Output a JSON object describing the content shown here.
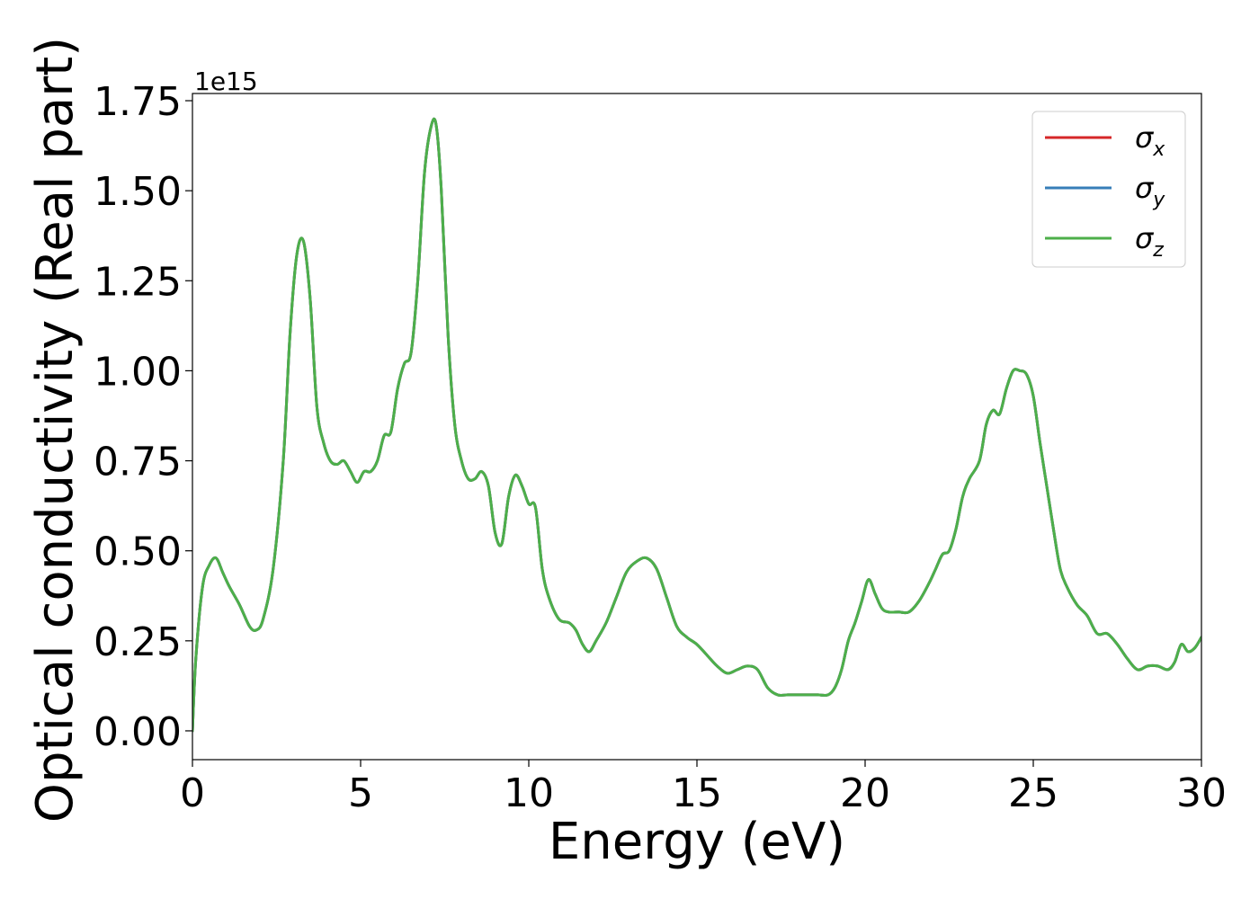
{
  "chart_data": {
    "type": "line",
    "title": "",
    "xlabel": "Energy (eV)",
    "ylabel": "Optical conductivity (Real part)",
    "y_offset_text": "1e15",
    "y_scale": 1000000000000000.0,
    "xlim": [
      0,
      30
    ],
    "ylim": [
      -0.08,
      1.77
    ],
    "xticks": [
      0,
      5,
      10,
      15,
      20,
      25,
      30
    ],
    "xtick_labels": [
      "0",
      "5",
      "10",
      "15",
      "20",
      "25",
      "30"
    ],
    "yticks": [
      0.0,
      0.25,
      0.5,
      0.75,
      1.0,
      1.25,
      1.5,
      1.75
    ],
    "ytick_labels": [
      "0.00",
      "0.25",
      "0.50",
      "0.75",
      "1.00",
      "1.25",
      "1.50",
      "1.75"
    ],
    "grid": false,
    "legend_position": "top-right",
    "legend": [
      {
        "symbol": "σ",
        "sub": "x",
        "color": "#d62728"
      },
      {
        "symbol": "σ",
        "sub": "y",
        "color": "#377eb8"
      },
      {
        "symbol": "σ",
        "sub": "z",
        "color": "#4daf4a"
      }
    ],
    "x": [
      0,
      0.1,
      0.3,
      0.5,
      0.7,
      0.9,
      1.1,
      1.4,
      1.7,
      1.9,
      2.1,
      2.4,
      2.7,
      2.9,
      3.1,
      3.3,
      3.5,
      3.7,
      3.9,
      4.1,
      4.3,
      4.5,
      4.7,
      4.9,
      5.1,
      5.3,
      5.5,
      5.7,
      5.9,
      6.1,
      6.3,
      6.5,
      6.7,
      6.9,
      7.1,
      7.25,
      7.4,
      7.6,
      7.8,
      8.0,
      8.2,
      8.4,
      8.6,
      8.8,
      9.0,
      9.2,
      9.4,
      9.6,
      9.8,
      10.0,
      10.2,
      10.4,
      10.6,
      10.9,
      11.2,
      11.4,
      11.6,
      11.8,
      12.0,
      12.3,
      12.6,
      12.9,
      13.2,
      13.5,
      13.8,
      14.1,
      14.4,
      14.7,
      15.0,
      15.3,
      15.6,
      15.9,
      16.2,
      16.5,
      16.8,
      17.1,
      17.4,
      17.7,
      18.0,
      18.3,
      18.6,
      18.9,
      19.1,
      19.3,
      19.5,
      19.7,
      19.9,
      20.1,
      20.3,
      20.5,
      20.7,
      21.0,
      21.3,
      21.6,
      21.9,
      22.1,
      22.3,
      22.5,
      22.7,
      22.9,
      23.1,
      23.4,
      23.6,
      23.8,
      24.0,
      24.2,
      24.4,
      24.6,
      24.8,
      25.0,
      25.2,
      25.4,
      25.6,
      25.8,
      26.0,
      26.3,
      26.6,
      26.9,
      27.2,
      27.5,
      27.8,
      28.1,
      28.4,
      28.7,
      29.0,
      29.2,
      29.4,
      29.6,
      29.8,
      30.0
    ],
    "series": [
      {
        "color": "#d62728",
        "values": [
          0.0,
          0.2,
          0.4,
          0.46,
          0.48,
          0.44,
          0.4,
          0.35,
          0.29,
          0.28,
          0.31,
          0.45,
          0.75,
          1.1,
          1.32,
          1.36,
          1.2,
          0.9,
          0.8,
          0.75,
          0.74,
          0.75,
          0.72,
          0.69,
          0.72,
          0.72,
          0.75,
          0.82,
          0.83,
          0.95,
          1.02,
          1.05,
          1.25,
          1.55,
          1.68,
          1.68,
          1.5,
          1.1,
          0.85,
          0.75,
          0.7,
          0.7,
          0.72,
          0.68,
          0.55,
          0.52,
          0.65,
          0.71,
          0.68,
          0.63,
          0.62,
          0.45,
          0.37,
          0.31,
          0.3,
          0.28,
          0.24,
          0.22,
          0.25,
          0.3,
          0.37,
          0.44,
          0.47,
          0.48,
          0.45,
          0.37,
          0.29,
          0.26,
          0.24,
          0.21,
          0.18,
          0.16,
          0.17,
          0.18,
          0.17,
          0.12,
          0.1,
          0.1,
          0.1,
          0.1,
          0.1,
          0.1,
          0.12,
          0.17,
          0.25,
          0.3,
          0.36,
          0.42,
          0.38,
          0.34,
          0.33,
          0.33,
          0.33,
          0.36,
          0.41,
          0.45,
          0.49,
          0.5,
          0.56,
          0.65,
          0.7,
          0.75,
          0.85,
          0.89,
          0.88,
          0.95,
          1.0,
          1.0,
          0.99,
          0.93,
          0.8,
          0.68,
          0.56,
          0.45,
          0.4,
          0.35,
          0.32,
          0.27,
          0.27,
          0.24,
          0.2,
          0.17,
          0.18,
          0.18,
          0.17,
          0.19,
          0.24,
          0.22,
          0.23,
          0.26
        ]
      },
      {
        "color": "#377eb8",
        "values": [
          0.0,
          0.2,
          0.4,
          0.46,
          0.48,
          0.44,
          0.4,
          0.35,
          0.29,
          0.28,
          0.31,
          0.45,
          0.75,
          1.1,
          1.32,
          1.36,
          1.2,
          0.9,
          0.8,
          0.75,
          0.74,
          0.75,
          0.72,
          0.69,
          0.72,
          0.72,
          0.75,
          0.82,
          0.83,
          0.95,
          1.02,
          1.05,
          1.25,
          1.55,
          1.68,
          1.68,
          1.5,
          1.1,
          0.85,
          0.75,
          0.7,
          0.7,
          0.72,
          0.68,
          0.55,
          0.52,
          0.65,
          0.71,
          0.68,
          0.63,
          0.62,
          0.45,
          0.37,
          0.31,
          0.3,
          0.28,
          0.24,
          0.22,
          0.25,
          0.3,
          0.37,
          0.44,
          0.47,
          0.48,
          0.45,
          0.37,
          0.29,
          0.26,
          0.24,
          0.21,
          0.18,
          0.16,
          0.17,
          0.18,
          0.17,
          0.12,
          0.1,
          0.1,
          0.1,
          0.1,
          0.1,
          0.1,
          0.12,
          0.17,
          0.25,
          0.3,
          0.36,
          0.42,
          0.38,
          0.34,
          0.33,
          0.33,
          0.33,
          0.36,
          0.41,
          0.45,
          0.49,
          0.5,
          0.56,
          0.65,
          0.7,
          0.75,
          0.85,
          0.89,
          0.88,
          0.95,
          1.0,
          1.0,
          0.99,
          0.93,
          0.8,
          0.68,
          0.56,
          0.45,
          0.4,
          0.35,
          0.32,
          0.27,
          0.27,
          0.24,
          0.2,
          0.17,
          0.18,
          0.18,
          0.17,
          0.19,
          0.24,
          0.22,
          0.23,
          0.26
        ]
      },
      {
        "color": "#4daf4a",
        "values": [
          0.0,
          0.2,
          0.4,
          0.46,
          0.48,
          0.44,
          0.4,
          0.35,
          0.29,
          0.28,
          0.31,
          0.45,
          0.75,
          1.1,
          1.32,
          1.36,
          1.2,
          0.9,
          0.8,
          0.75,
          0.74,
          0.75,
          0.72,
          0.69,
          0.72,
          0.72,
          0.75,
          0.82,
          0.83,
          0.95,
          1.02,
          1.05,
          1.25,
          1.55,
          1.68,
          1.68,
          1.5,
          1.1,
          0.85,
          0.75,
          0.7,
          0.7,
          0.72,
          0.68,
          0.55,
          0.52,
          0.65,
          0.71,
          0.68,
          0.63,
          0.62,
          0.45,
          0.37,
          0.31,
          0.3,
          0.28,
          0.24,
          0.22,
          0.25,
          0.3,
          0.37,
          0.44,
          0.47,
          0.48,
          0.45,
          0.37,
          0.29,
          0.26,
          0.24,
          0.21,
          0.18,
          0.16,
          0.17,
          0.18,
          0.17,
          0.12,
          0.1,
          0.1,
          0.1,
          0.1,
          0.1,
          0.1,
          0.12,
          0.17,
          0.25,
          0.3,
          0.36,
          0.42,
          0.38,
          0.34,
          0.33,
          0.33,
          0.33,
          0.36,
          0.41,
          0.45,
          0.49,
          0.5,
          0.56,
          0.65,
          0.7,
          0.75,
          0.85,
          0.89,
          0.88,
          0.95,
          1.0,
          1.0,
          0.99,
          0.93,
          0.8,
          0.68,
          0.56,
          0.45,
          0.4,
          0.35,
          0.32,
          0.27,
          0.27,
          0.24,
          0.2,
          0.17,
          0.18,
          0.18,
          0.17,
          0.19,
          0.24,
          0.22,
          0.23,
          0.26
        ]
      }
    ]
  }
}
